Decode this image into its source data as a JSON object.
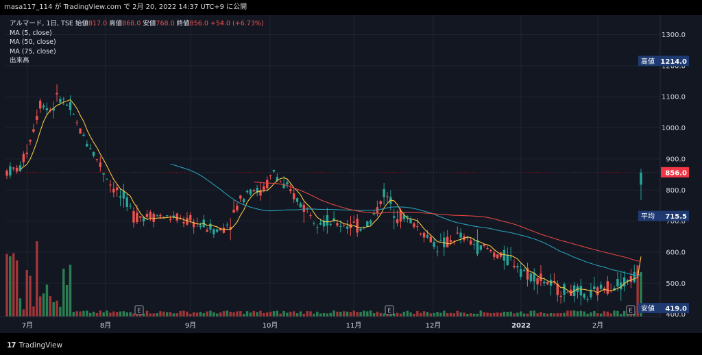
{
  "header": {
    "text": "masa117_114 が TradingView.com で 2月 20, 2022 14:37 UTC+9 に公開"
  },
  "legend": {
    "symbol": "アルマード, 1日, TSE",
    "open_label": "始値",
    "open": "817.0",
    "high_label": "高値",
    "high": "868.0",
    "low_label": "安値",
    "low": "768.0",
    "close_label": "終値",
    "close": "856.0",
    "change": "+54.0 (+6.73%)",
    "ma1": "MA (5, close)",
    "ma2": "MA (50, close)",
    "ma3": "MA (75, close)",
    "volume": "出来高"
  },
  "footer": {
    "brand": "TradingView"
  },
  "chart_data": {
    "type": "candlestick",
    "y_ticks": [
      "1300.0",
      "1200.0",
      "1100.0",
      "1000.0",
      "900.0",
      "800.0",
      "700.0",
      "600.0",
      "500.0",
      "400.0"
    ],
    "ylim": [
      400,
      1320
    ],
    "x_ticks": [
      "7月",
      "8月",
      "9月",
      "10月",
      "11月",
      "12月",
      "2022",
      "2月"
    ],
    "price_tags": [
      {
        "label": "高値",
        "value": "1214.0",
        "color": "#1e3a70"
      },
      {
        "label": "",
        "value": "856.0",
        "color": "#f23645"
      },
      {
        "label": "平均",
        "value": "715.5",
        "color": "#1e3a70"
      },
      {
        "label": "安値",
        "value": "419.0",
        "color": "#1e3a70"
      }
    ],
    "earnings_markers": [
      "E",
      "E",
      "E"
    ],
    "colors": {
      "up": "#26a69a",
      "down": "#ef5350",
      "ma5": "#f5c842",
      "ma50": "#e0473e",
      "ma75": "#26a0b8"
    }
  }
}
